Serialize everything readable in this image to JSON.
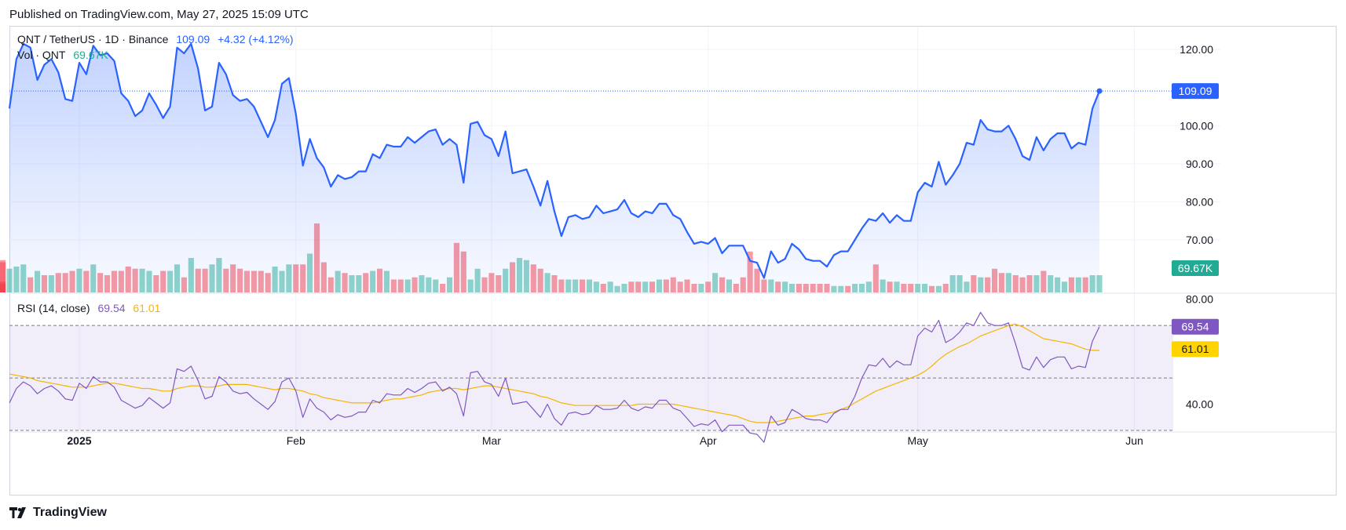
{
  "published": "Published on TradingView.com, May 27, 2025 15:09 UTC",
  "brand": "TradingView",
  "legend": {
    "symbol": "QNT / TetherUS · 1D · Binance",
    "price": "109.09",
    "change": "+4.32 (+4.12%)",
    "vol_label": "Vol · QNT",
    "vol_value": "69.67K",
    "rsi_label": "RSI (14, close)",
    "rsi_value": "69.54",
    "rsi_ma_value": "61.01"
  },
  "colors": {
    "price_line": "#2962ff",
    "vol_up": "#22ab94",
    "vol_down": "#f23645",
    "rsi_line": "#7e57c2",
    "rsi_ma": "#f2b705"
  },
  "chart_data": [
    {
      "type": "area",
      "title": "QNT / TetherUS · 1D · Binance",
      "y_axis_ticks": [
        "120.00",
        "100.00",
        "90.00",
        "80.00",
        "70.00"
      ],
      "ylim": [
        56,
        126
      ],
      "x_labels": [
        "2025",
        "Feb",
        "Mar",
        "Apr",
        "May",
        "Jun"
      ],
      "last_price_label": "109.09",
      "x": [
        "2024-12-22",
        "2024-12-23",
        "2024-12-24",
        "2024-12-25",
        "2024-12-26",
        "2024-12-27",
        "2024-12-28",
        "2024-12-29",
        "2024-12-30",
        "2024-12-31",
        "2025-01-01",
        "2025-01-02",
        "2025-01-03",
        "2025-01-04",
        "2025-01-05",
        "2025-01-06",
        "2025-01-07",
        "2025-01-08",
        "2025-01-09",
        "2025-01-10",
        "2025-01-11",
        "2025-01-12",
        "2025-01-13",
        "2025-01-14",
        "2025-01-15",
        "2025-01-16",
        "2025-01-17",
        "2025-01-18",
        "2025-01-19",
        "2025-01-20",
        "2025-01-21",
        "2025-01-22",
        "2025-01-23",
        "2025-01-24",
        "2025-01-25",
        "2025-01-26",
        "2025-01-27",
        "2025-01-28",
        "2025-01-29",
        "2025-01-30",
        "2025-01-31",
        "2025-02-01",
        "2025-02-02",
        "2025-02-03",
        "2025-02-04",
        "2025-02-05",
        "2025-02-06",
        "2025-02-07",
        "2025-02-08",
        "2025-02-09",
        "2025-02-10",
        "2025-02-11",
        "2025-02-12",
        "2025-02-13",
        "2025-02-14",
        "2025-02-15",
        "2025-02-16",
        "2025-02-17",
        "2025-02-18",
        "2025-02-19",
        "2025-02-20",
        "2025-02-21",
        "2025-02-22",
        "2025-02-23",
        "2025-02-24",
        "2025-02-25",
        "2025-02-26",
        "2025-02-27",
        "2025-02-28",
        "2025-03-01",
        "2025-03-02",
        "2025-03-03",
        "2025-03-04",
        "2025-03-05",
        "2025-03-06",
        "2025-03-07",
        "2025-03-08",
        "2025-03-09",
        "2025-03-10",
        "2025-03-11",
        "2025-03-12",
        "2025-03-13",
        "2025-03-14",
        "2025-03-15",
        "2025-03-16",
        "2025-03-17",
        "2025-03-18",
        "2025-03-19",
        "2025-03-20",
        "2025-03-21",
        "2025-03-22",
        "2025-03-23",
        "2025-03-24",
        "2025-03-25",
        "2025-03-26",
        "2025-03-27",
        "2025-03-28",
        "2025-03-29",
        "2025-03-30",
        "2025-03-31",
        "2025-04-01",
        "2025-04-02",
        "2025-04-03",
        "2025-04-04",
        "2025-04-05",
        "2025-04-06",
        "2025-04-07",
        "2025-04-08",
        "2025-04-09",
        "2025-04-10",
        "2025-04-11",
        "2025-04-12",
        "2025-04-13",
        "2025-04-14",
        "2025-04-15",
        "2025-04-16",
        "2025-04-17",
        "2025-04-18",
        "2025-04-19",
        "2025-04-20",
        "2025-04-21",
        "2025-04-22",
        "2025-04-23",
        "2025-04-24",
        "2025-04-25",
        "2025-04-26",
        "2025-04-27",
        "2025-04-28",
        "2025-04-29",
        "2025-04-30",
        "2025-05-01",
        "2025-05-02",
        "2025-05-03",
        "2025-05-04",
        "2025-05-05",
        "2025-05-06",
        "2025-05-07",
        "2025-05-08",
        "2025-05-09",
        "2025-05-10",
        "2025-05-11",
        "2025-05-12",
        "2025-05-13",
        "2025-05-14",
        "2025-05-15",
        "2025-05-16",
        "2025-05-17",
        "2025-05-18",
        "2025-05-19",
        "2025-05-20",
        "2025-05-21",
        "2025-05-22",
        "2025-05-23",
        "2025-05-24",
        "2025-05-25",
        "2025-05-26",
        "2025-05-27"
      ],
      "series": [
        {
          "name": "QNT / TetherUS",
          "values": [
            104.5,
            117.5,
            121.5,
            120.5,
            112,
            116,
            117.5,
            114,
            107,
            106.5,
            116.5,
            113.5,
            121,
            118.5,
            119,
            117,
            108.5,
            106.5,
            102.5,
            104,
            108.5,
            105.5,
            102,
            105,
            120.5,
            119,
            121.5,
            115,
            104,
            105,
            116.5,
            113.5,
            108,
            106.5,
            107,
            105,
            101,
            97,
            101.5,
            111,
            112.5,
            103,
            89.5,
            96.5,
            91.5,
            89,
            84,
            87,
            86,
            86.5,
            88,
            88,
            92.5,
            91.5,
            95,
            94.5,
            94.5,
            97,
            95.5,
            97,
            98.5,
            99,
            95,
            96.5,
            95,
            85,
            100.5,
            101,
            97.5,
            96.5,
            92,
            98.5,
            87.5,
            88,
            88.5,
            84,
            79,
            85.5,
            77.5,
            71,
            76,
            76.5,
            75.5,
            76,
            79,
            77,
            77.5,
            78,
            80.5,
            77,
            76,
            77.5,
            77,
            79.5,
            79.5,
            76.5,
            75.5,
            72,
            69,
            69.5,
            69,
            70.5,
            66.5,
            68.5,
            68.5,
            68.5,
            64.5,
            64,
            60,
            67,
            64,
            65,
            69,
            67.5,
            65,
            64.5,
            64.5,
            63,
            66,
            67,
            67,
            70,
            73,
            75.5,
            75,
            77,
            74.5,
            76.5,
            75,
            75,
            82.5,
            85,
            84,
            90.5,
            84.5,
            87,
            90,
            95.5,
            95,
            101.5,
            99,
            98.5,
            98.5,
            100,
            96.5,
            92,
            91,
            97,
            93.5,
            96.5,
            98,
            98,
            94,
            95.5,
            95,
            104.5,
            109.09
          ]
        }
      ]
    },
    {
      "type": "bar",
      "title": "Vol · QNT",
      "last_value_label": "69.67K",
      "series": [
        {
          "name": "Vol · QNT",
          "values": [
            22,
            24,
            26,
            14,
            20,
            16,
            16,
            18,
            18,
            20,
            22,
            20,
            26,
            18,
            16,
            20,
            20,
            24,
            22,
            22,
            20,
            16,
            20,
            20,
            26,
            14,
            32,
            22,
            22,
            26,
            32,
            22,
            26,
            22,
            20,
            20,
            20,
            18,
            24,
            20,
            26,
            26,
            26,
            36,
            64,
            28,
            14,
            20,
            18,
            16,
            16,
            18,
            20,
            22,
            20,
            12,
            12,
            12,
            14,
            16,
            14,
            12,
            8,
            14,
            46,
            38,
            12,
            22,
            14,
            18,
            16,
            22,
            28,
            32,
            30,
            26,
            22,
            18,
            16,
            12,
            12,
            12,
            12,
            12,
            10,
            8,
            10,
            6,
            8,
            10,
            10,
            10,
            10,
            12,
            12,
            14,
            10,
            12,
            8,
            8,
            10,
            18,
            14,
            12,
            8,
            14,
            38,
            22,
            12,
            12,
            10,
            10,
            8,
            8,
            8,
            8,
            8,
            8,
            6,
            6,
            6,
            8,
            8,
            10,
            26,
            12,
            10,
            10,
            8,
            8,
            8,
            8,
            6,
            6,
            8,
            16,
            16,
            10,
            16,
            14,
            14,
            22,
            18,
            18,
            16,
            14,
            16,
            16,
            20,
            16,
            14,
            10,
            14,
            14,
            14,
            16,
            16,
            10,
            8,
            28,
            30
          ],
          "direction": [
            "up",
            "up",
            "up",
            "down",
            "up",
            "down",
            "up",
            "down",
            "down",
            "down",
            "up",
            "down",
            "up",
            "down",
            "down",
            "down",
            "down",
            "down",
            "down",
            "up",
            "up",
            "down",
            "down",
            "up",
            "up",
            "down",
            "up",
            "down",
            "down",
            "up",
            "up",
            "down",
            "down",
            "down",
            "down",
            "down",
            "down",
            "down",
            "up",
            "up",
            "up",
            "down",
            "down",
            "up",
            "down",
            "down",
            "down",
            "up",
            "down",
            "up",
            "up",
            "down",
            "up",
            "down",
            "up",
            "down",
            "down",
            "up",
            "down",
            "up",
            "up",
            "up",
            "down",
            "up",
            "down",
            "down",
            "up",
            "up",
            "down",
            "down",
            "down",
            "up",
            "down",
            "up",
            "up",
            "down",
            "down",
            "up",
            "down",
            "down",
            "up",
            "up",
            "down",
            "up",
            "up",
            "down",
            "up",
            "up",
            "up",
            "down",
            "down",
            "up",
            "down",
            "up",
            "down",
            "down",
            "down",
            "down",
            "down",
            "up",
            "down",
            "up",
            "down",
            "up",
            "down",
            "down",
            "down",
            "down",
            "down",
            "up",
            "down",
            "up",
            "up",
            "down",
            "down",
            "down",
            "down",
            "down",
            "up",
            "up",
            "down",
            "up",
            "up",
            "up",
            "down",
            "up",
            "down",
            "up",
            "down",
            "down",
            "up",
            "up",
            "down",
            "up",
            "down",
            "up",
            "up",
            "up",
            "down",
            "up",
            "down",
            "down",
            "down",
            "up",
            "down",
            "down",
            "down",
            "up",
            "down",
            "up",
            "up",
            "up",
            "down",
            "up",
            "down",
            "up",
            "up"
          ]
        }
      ]
    },
    {
      "type": "line",
      "title": "RSI (14, close)",
      "y_axis_ticks": [
        "80.00",
        "40.00"
      ],
      "ylim": [
        30,
        82
      ],
      "levels": [
        70,
        50,
        30
      ],
      "series": [
        {
          "name": "RSI (14, close)",
          "values": [
            40.5,
            46,
            48.5,
            47,
            44,
            46,
            47,
            45,
            42,
            41.5,
            48,
            46,
            50.5,
            48.5,
            48.5,
            46.5,
            41.5,
            40,
            38.5,
            39.5,
            42.5,
            40.5,
            38.5,
            40.5,
            53.5,
            52.5,
            54.5,
            49,
            42,
            43,
            50.5,
            48.5,
            45,
            44,
            44.5,
            42,
            40,
            38,
            41,
            48.5,
            50,
            45,
            35,
            42,
            38.5,
            37,
            34,
            36,
            35,
            35.5,
            37,
            37,
            41.5,
            40.5,
            44,
            43.5,
            43.5,
            46,
            44.5,
            46,
            48,
            48.5,
            45,
            46.5,
            44,
            35.5,
            52,
            52.5,
            48.5,
            47.5,
            43,
            50,
            40,
            40.5,
            41,
            38,
            35,
            40,
            34.5,
            32,
            36.5,
            37,
            36,
            36.5,
            39.5,
            38,
            38,
            38.5,
            41.5,
            38.5,
            37.5,
            39,
            38.5,
            41.5,
            41.5,
            38.5,
            37.5,
            34.5,
            31.5,
            32.5,
            32,
            34,
            29.5,
            32,
            32,
            32,
            29,
            28.5,
            25.5,
            35.5,
            32,
            33,
            38,
            36.5,
            34.5,
            34,
            34,
            33,
            36.5,
            38,
            38,
            43,
            50,
            55,
            54.5,
            57.5,
            54,
            56.5,
            55,
            55,
            66,
            69,
            67.5,
            72,
            63.5,
            65,
            67.5,
            71,
            70,
            75,
            71,
            70,
            70,
            71,
            63,
            54,
            53,
            58,
            54,
            57,
            58,
            58,
            53.5,
            54.5,
            54,
            64,
            69.54
          ]
        },
        {
          "name": "RSI-based MA",
          "values": [
            51.5,
            51,
            50.5,
            50,
            49,
            48.5,
            48,
            47.5,
            47,
            46.5,
            46.5,
            46.5,
            47,
            47.5,
            48,
            48,
            47.5,
            47,
            46.5,
            46,
            46,
            45.5,
            45,
            45,
            46,
            46.5,
            47,
            47,
            46.5,
            46.5,
            47,
            47.5,
            47.5,
            47.5,
            47.5,
            47,
            46.5,
            46,
            45.5,
            46,
            46,
            45.5,
            45,
            44,
            43.5,
            42.5,
            42,
            41.5,
            41,
            40.5,
            40.5,
            40.5,
            40.5,
            41,
            41.5,
            42,
            42,
            42.5,
            43,
            43.5,
            44.5,
            45,
            45.5,
            46,
            46,
            45.5,
            46,
            46.5,
            47,
            47,
            46.5,
            46,
            45.5,
            45,
            44.5,
            44,
            43,
            42.5,
            41.5,
            40.5,
            40,
            39.5,
            39.5,
            39.5,
            39.5,
            39.5,
            39.5,
            39.5,
            39.5,
            39.5,
            40,
            40,
            40,
            40,
            40,
            40,
            39.5,
            39,
            38.5,
            38,
            37.5,
            37,
            36.5,
            36,
            35.5,
            34.5,
            33.5,
            33,
            33,
            33,
            33.5,
            34,
            34.5,
            35,
            35.5,
            35.5,
            36,
            36.5,
            37,
            38,
            39,
            40.5,
            42,
            43.5,
            45,
            46,
            47,
            48,
            49,
            50,
            51,
            52.5,
            54.5,
            57,
            59,
            60.5,
            62,
            63,
            64.5,
            66,
            67,
            68,
            69,
            70,
            70.5,
            69.5,
            68,
            66.5,
            65,
            64.5,
            64,
            63.5,
            63,
            62,
            61,
            60.5,
            60.5,
            61.01
          ]
        }
      ]
    }
  ]
}
